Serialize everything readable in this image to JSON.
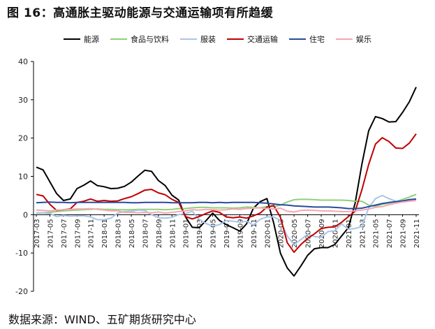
{
  "title": "图 16：高通胀主驱动能源与交通运输项有所趋缓",
  "source": "数据来源：WIND、五矿期货研究中心",
  "chart_data": {
    "type": "line",
    "x": [
      "2017-03",
      "2017-04",
      "2017-05",
      "2017-06",
      "2017-07",
      "2017-08",
      "2017-09",
      "2017-10",
      "2017-11",
      "2017-12",
      "2018-01",
      "2018-02",
      "2018-03",
      "2018-04",
      "2018-05",
      "2018-06",
      "2018-07",
      "2018-08",
      "2018-09",
      "2018-10",
      "2018-11",
      "2018-12",
      "2019-01",
      "2019-02",
      "2019-03",
      "2019-04",
      "2019-05",
      "2019-06",
      "2019-07",
      "2019-08",
      "2019-09",
      "2019-10",
      "2019-11",
      "2019-12",
      "2020-01",
      "2020-02",
      "2020-03",
      "2020-04",
      "2020-05",
      "2020-06",
      "2020-07",
      "2020-08",
      "2020-09",
      "2020-10",
      "2020-11",
      "2020-12",
      "2021-01",
      "2021-02",
      "2021-03",
      "2021-04",
      "2021-05",
      "2021-06",
      "2021-07",
      "2021-08",
      "2021-09",
      "2021-10",
      "2021-11"
    ],
    "x_tick_labels": [
      "2017-03",
      "2017-05",
      "2017-07",
      "2017-09",
      "2017-11",
      "2018-01",
      "2018-03",
      "2018-05",
      "2018-07",
      "2018-09",
      "2018-11",
      "2019-01",
      "2019-03",
      "2019-05",
      "2019-07",
      "2019-09",
      "2019-11",
      "2020-01",
      "2020-03",
      "2020-05",
      "2020-07",
      "2020-09",
      "2020-11",
      "2021-01",
      "2021-03",
      "2021-05",
      "2021-07",
      "2021-09",
      "2021-11"
    ],
    "ylim": [
      -20,
      40
    ],
    "yticks": [
      -20,
      -10,
      0,
      10,
      20,
      30,
      40
    ],
    "legend_position": "top",
    "grid": false,
    "series": [
      {
        "name": "能源",
        "color": "#000000",
        "values": [
          12.4,
          11.7,
          8.6,
          5.5,
          3.7,
          4.1,
          6.8,
          7.7,
          8.8,
          7.6,
          7.3,
          6.8,
          6.9,
          7.4,
          8.5,
          10.1,
          11.6,
          11.3,
          8.9,
          7.6,
          5.1,
          3.8,
          -0.6,
          -3.3,
          -3.4,
          -1.6,
          0.4,
          -1.5,
          -2.6,
          -3.4,
          -4.3,
          -2.4,
          1.7,
          3.4,
          4.2,
          -2.2,
          -10.1,
          -13.9,
          -16.0,
          -13.4,
          -10.6,
          -8.9,
          -8.6,
          -8.6,
          -7.8,
          -5.6,
          -3.4,
          3.0,
          13.2,
          21.9,
          25.6,
          25.1,
          24.2,
          24.3,
          26.7,
          29.5,
          33.3
        ]
      },
      {
        "name": "食品与饮料",
        "color": "#8fd07a",
        "values": [
          0.4,
          0.5,
          0.6,
          0.8,
          1.0,
          1.1,
          1.2,
          1.3,
          1.4,
          1.5,
          1.4,
          1.4,
          1.3,
          1.3,
          1.3,
          1.4,
          1.4,
          1.4,
          1.4,
          1.3,
          1.4,
          1.6,
          1.6,
          1.8,
          1.9,
          1.9,
          1.8,
          1.8,
          1.8,
          1.7,
          1.8,
          2.0,
          1.9,
          1.8,
          2.1,
          2.1,
          2.5,
          3.3,
          3.9,
          4.0,
          4.0,
          3.9,
          3.8,
          3.8,
          3.8,
          3.8,
          3.7,
          3.5,
          3.5,
          2.5,
          2.2,
          2.7,
          3.0,
          3.4,
          4.0,
          4.6,
          5.3
        ]
      },
      {
        "name": "服装",
        "color": "#a9c4e8",
        "values": [
          0.5,
          0.5,
          0.3,
          -0.5,
          -0.2,
          -0.4,
          -0.3,
          -0.3,
          -0.6,
          -1.3,
          -1.3,
          -0.9,
          0.4,
          0.8,
          0.9,
          1.2,
          1.1,
          0.0,
          -0.8,
          -0.9,
          -0.7,
          0.0,
          0.3,
          0.9,
          -1.2,
          -2.3,
          -3.0,
          -2.6,
          -1.5,
          -1.7,
          -2.0,
          -1.7,
          -2.7,
          -1.2,
          -0.6,
          -0.6,
          -1.5,
          -5.6,
          -7.8,
          -6.5,
          -5.1,
          -5.7,
          -5.9,
          -4.4,
          -4.2,
          -2.4,
          -3.8,
          -3.6,
          -3.1,
          1.8,
          4.2,
          5.0,
          4.2,
          3.5,
          3.6,
          4.0,
          4.0
        ]
      },
      {
        "name": "交通运输",
        "color": "#c00000",
        "values": [
          5.3,
          4.9,
          2.7,
          1.1,
          1.3,
          1.5,
          3.2,
          3.5,
          4.1,
          3.5,
          3.7,
          3.5,
          3.6,
          4.2,
          4.7,
          5.5,
          6.4,
          6.6,
          5.7,
          5.2,
          4.0,
          3.2,
          -0.5,
          -1.1,
          -0.5,
          0.3,
          1.0,
          0.6,
          -0.6,
          -0.8,
          -0.6,
          -0.9,
          -0.3,
          0.4,
          2.0,
          2.4,
          -0.7,
          -7.3,
          -9.8,
          -7.8,
          -6.2,
          -5.0,
          -3.6,
          -3.3,
          -3.2,
          -2.0,
          -0.5,
          0.9,
          6.5,
          13.1,
          18.4,
          20.1,
          19.1,
          17.4,
          17.3,
          18.7,
          21.1
        ]
      },
      {
        "name": "住宅",
        "color": "#2a4b9b",
        "values": [
          3.1,
          3.2,
          3.3,
          3.2,
          3.2,
          3.1,
          3.2,
          3.2,
          3.2,
          3.2,
          3.2,
          3.2,
          3.2,
          3.2,
          3.1,
          3.1,
          3.2,
          3.2,
          3.2,
          3.2,
          3.1,
          3.1,
          3.1,
          3.1,
          3.2,
          3.2,
          3.1,
          3.2,
          3.1,
          3.2,
          3.2,
          3.2,
          3.2,
          3.1,
          3.0,
          2.8,
          2.6,
          2.5,
          2.3,
          2.2,
          2.1,
          2.0,
          2.0,
          2.0,
          1.9,
          1.8,
          1.6,
          1.6,
          1.7,
          2.1,
          2.5,
          2.9,
          3.2,
          3.4,
          3.6,
          3.9,
          4.1
        ]
      },
      {
        "name": "娱乐",
        "color": "#f4a7b3",
        "values": [
          1.2,
          1.1,
          1.0,
          1.2,
          1.3,
          1.4,
          1.5,
          1.5,
          1.6,
          1.4,
          1.2,
          1.0,
          1.0,
          0.6,
          0.6,
          0.5,
          0.6,
          0.5,
          0.7,
          0.4,
          0.6,
          0.8,
          1.0,
          1.3,
          1.2,
          1.4,
          1.3,
          1.2,
          1.3,
          1.5,
          1.4,
          1.6,
          1.7,
          1.8,
          1.6,
          1.5,
          1.7,
          0.9,
          0.7,
          1.1,
          1.2,
          1.1,
          1.0,
          1.0,
          0.9,
          0.8,
          0.8,
          1.0,
          1.2,
          1.5,
          1.9,
          2.1,
          2.6,
          3.0,
          3.3,
          3.5,
          3.7
        ]
      }
    ]
  }
}
